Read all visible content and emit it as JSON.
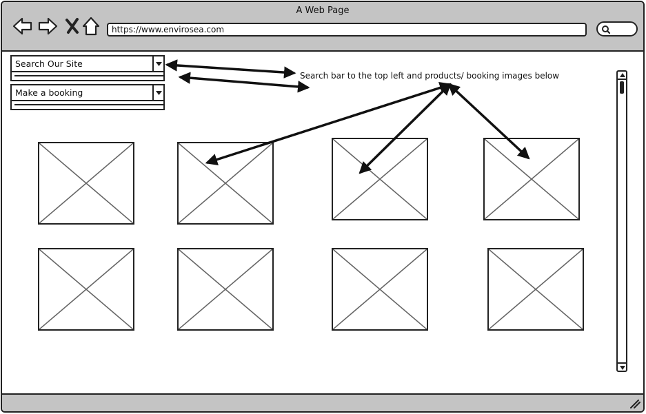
{
  "window": {
    "title": "A Web Page",
    "url": "https://www.envirosea.com"
  },
  "icons": {
    "back": "back-arrow-icon",
    "forward": "forward-arrow-icon",
    "close": "close-icon",
    "home": "home-icon",
    "search": "search-icon",
    "resize": "resize-grip-icon"
  },
  "search_combo": {
    "label": "Search Our Site"
  },
  "booking_combo": {
    "label": "Make a booking"
  },
  "annotation": {
    "text": "Search bar to the top left and products/ booking images below"
  },
  "image_placeholders": {
    "count": 8
  }
}
